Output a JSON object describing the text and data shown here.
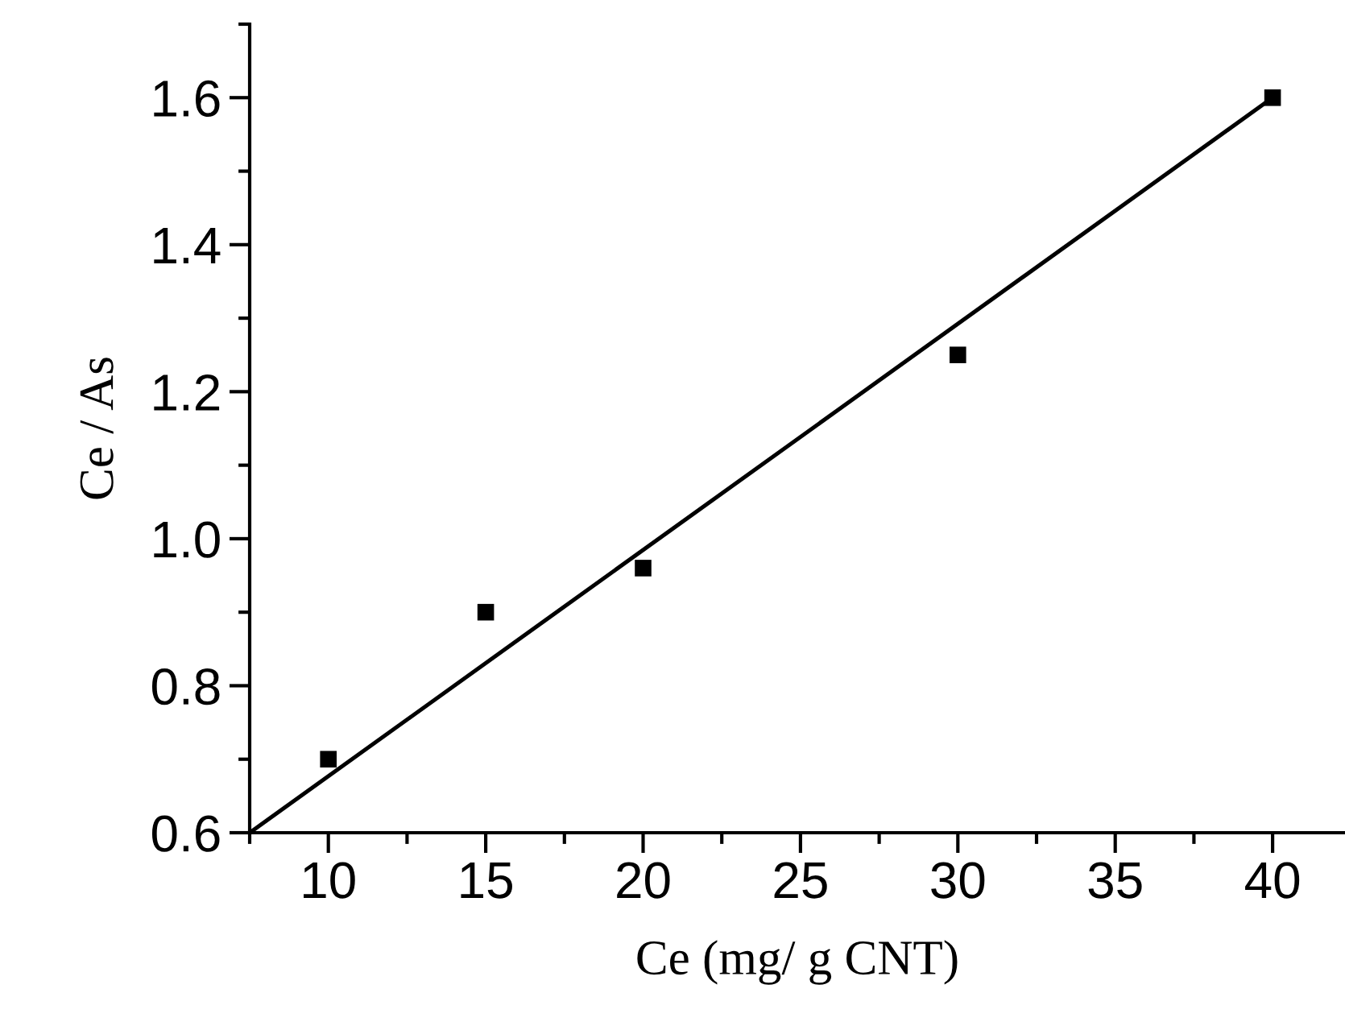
{
  "chart_data": {
    "type": "scatter",
    "xlabel": "Ce (mg/ g CNT)",
    "ylabel": "Ce / As",
    "xlim": [
      7.5,
      42.3
    ],
    "xticks": [
      10,
      15,
      20,
      25,
      30,
      35,
      40
    ],
    "ylim": [
      0.6,
      1.7
    ],
    "yticks": [
      0.6,
      0.8,
      {
        "value": 1,
        "label": "1.0"
      },
      1.2,
      1.4,
      1.6
    ],
    "grid": false,
    "legend": false,
    "marker": "square",
    "series": [
      {
        "color": "#000000",
        "x": [
          10,
          15,
          20,
          30,
          40
        ],
        "values": [
          0.7,
          0.9,
          0.96,
          1.25,
          1.6
        ]
      },
      {
        "type": "line",
        "color": "#000000",
        "line_style": "solid",
        "marker": "none",
        "x": [
          7.5,
          40
        ],
        "values": [
          0.6,
          1.6
        ]
      }
    ]
  }
}
